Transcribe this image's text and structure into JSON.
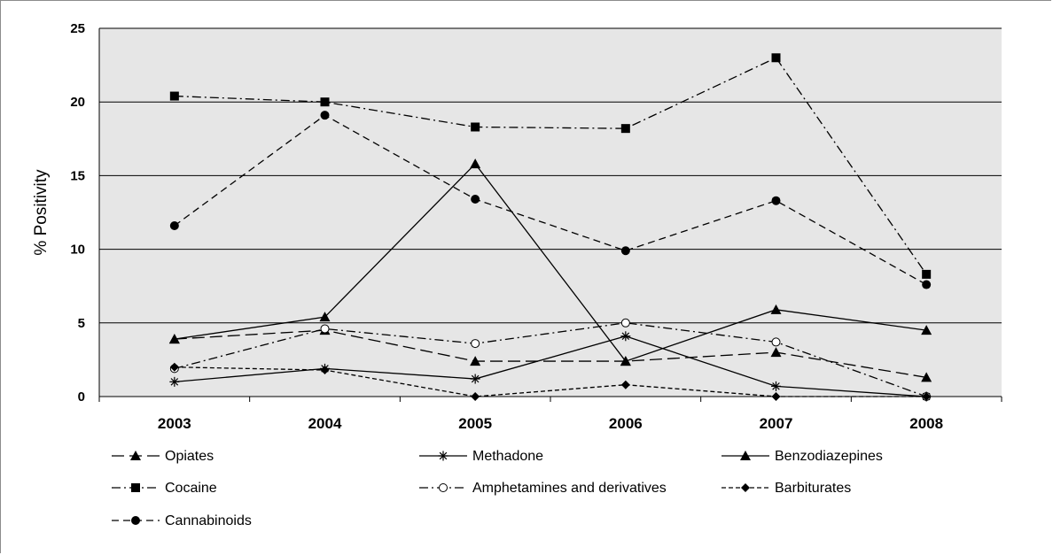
{
  "chart_data": {
    "type": "line",
    "title": "",
    "xlabel": "",
    "ylabel": "% Positivity",
    "ylim": [
      0,
      25
    ],
    "yticks": [
      0,
      5,
      10,
      15,
      20,
      25
    ],
    "grid": "horizontal",
    "legend_position": "bottom",
    "colors": {
      "plot_background": "#e6e6e6",
      "line": "#000000",
      "gridline": "#000000"
    },
    "categories": [
      "2003",
      "2004",
      "2005",
      "2006",
      "2007",
      "2008"
    ],
    "series": [
      {
        "name": "Opiates",
        "marker": "triangle",
        "dash": "long-dash",
        "values": [
          3.9,
          4.5,
          2.4,
          2.4,
          3.0,
          1.3
        ]
      },
      {
        "name": "Methadone",
        "marker": "asterisk",
        "dash": "solid",
        "values": [
          1.0,
          1.9,
          1.2,
          4.1,
          0.7,
          0.0
        ]
      },
      {
        "name": "Benzodiazepines",
        "marker": "triangle",
        "dash": "solid",
        "values": [
          3.9,
          5.4,
          15.8,
          2.4,
          5.9,
          4.5
        ]
      },
      {
        "name": "Cocaine",
        "marker": "square",
        "dash": "dash-dot",
        "values": [
          20.4,
          20.0,
          18.3,
          18.2,
          23.0,
          8.3
        ]
      },
      {
        "name": "Amphetamines and derivatives",
        "marker": "open-circle",
        "dash": "dash-dot",
        "values": [
          1.9,
          4.6,
          3.6,
          5.0,
          3.7,
          0.0
        ]
      },
      {
        "name": "Barbiturates",
        "marker": "diamond",
        "dash": "short-dash",
        "values": [
          2.0,
          1.8,
          0.0,
          0.8,
          0.0,
          0.0
        ]
      },
      {
        "name": "Cannabinoids",
        "marker": "circle",
        "dash": "dash",
        "values": [
          11.6,
          19.1,
          13.4,
          9.9,
          13.3,
          7.6
        ]
      }
    ]
  }
}
